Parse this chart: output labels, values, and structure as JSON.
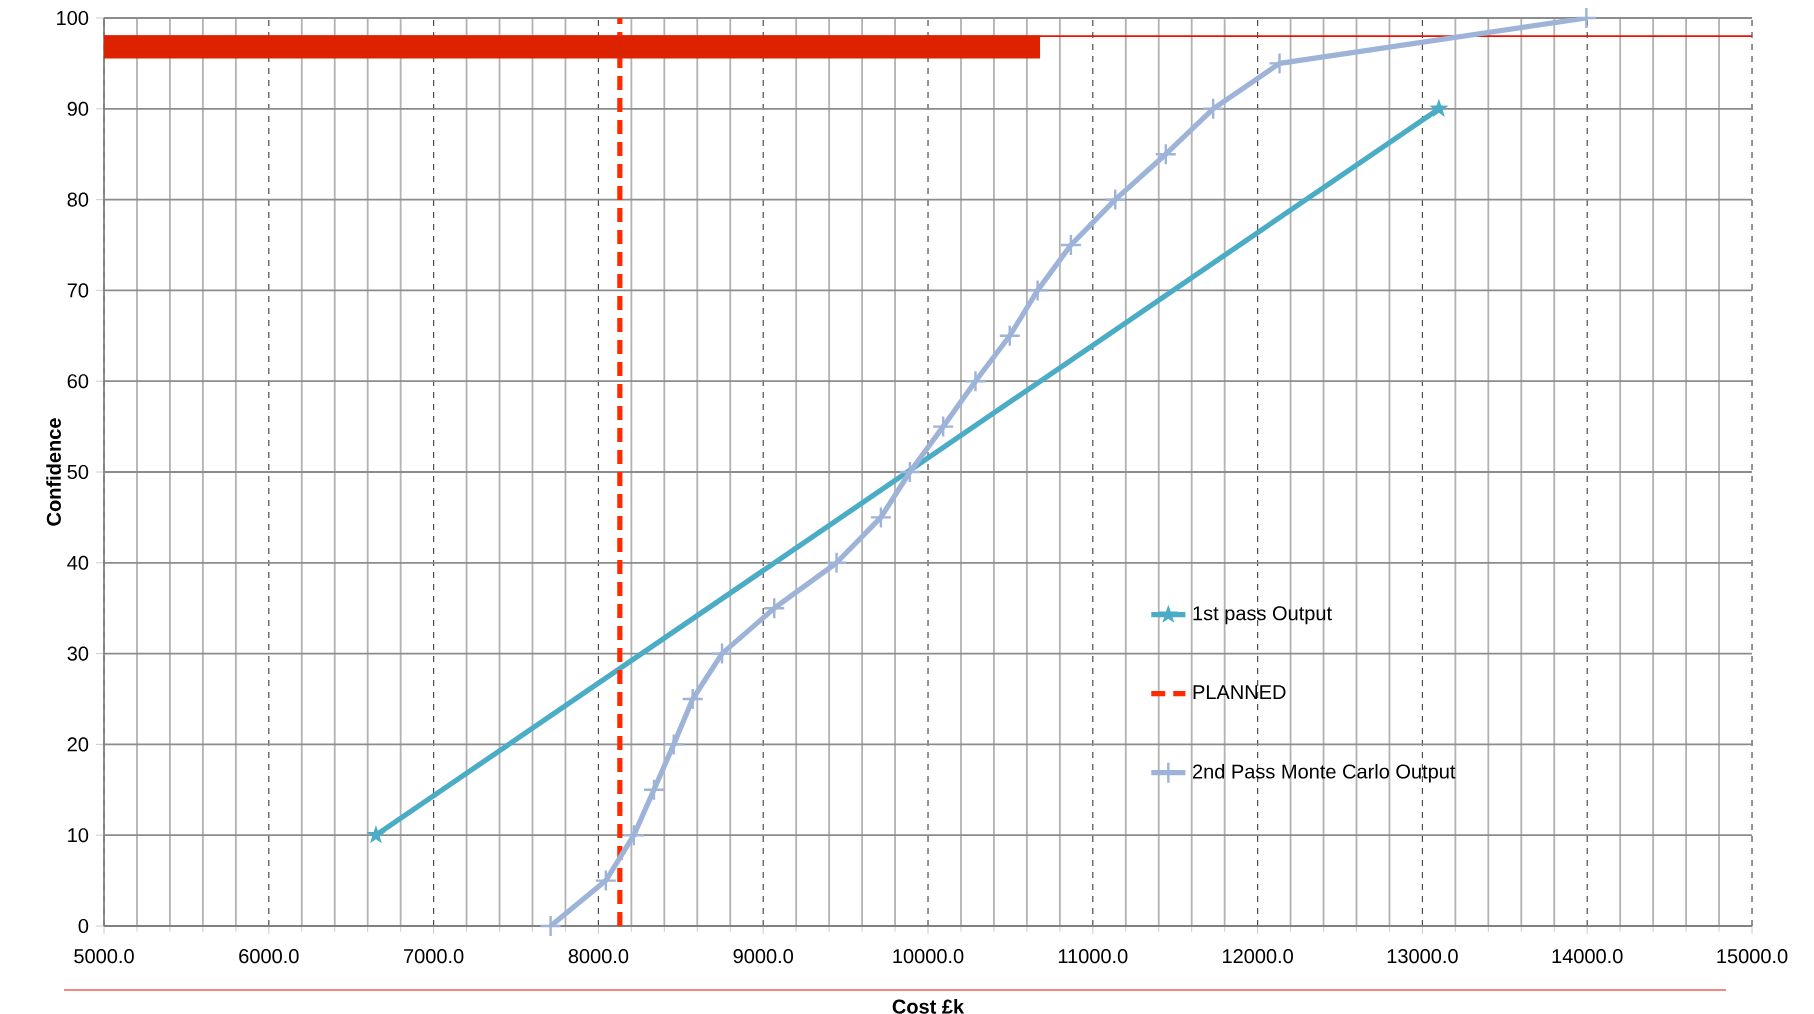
{
  "chart_data": {
    "type": "line",
    "xlabel": "Cost £k",
    "ylabel": "Confidence",
    "xlim": [
      5000,
      15000
    ],
    "ylim": [
      0,
      100
    ],
    "xticks": [
      {
        "value": 5000,
        "label": "5000.0"
      },
      {
        "value": 6000,
        "label": "6000.0"
      },
      {
        "value": 7000,
        "label": "7000.0"
      },
      {
        "value": 8000,
        "label": "8000.0"
      },
      {
        "value": 9000,
        "label": "9000.0"
      },
      {
        "value": 10000,
        "label": "10000.0"
      },
      {
        "value": 11000,
        "label": "11000.0"
      },
      {
        "value": 12000,
        "label": "12000.0"
      },
      {
        "value": 13000,
        "label": "13000.0"
      },
      {
        "value": 14000,
        "label": "14000.0"
      },
      {
        "value": 15000,
        "label": "15000.0"
      }
    ],
    "yticks": [
      0,
      10,
      20,
      30,
      40,
      50,
      60,
      70,
      80,
      90,
      100
    ],
    "grid": true,
    "legend": "right",
    "ref_lines": [
      {
        "axis": "y",
        "value": 98,
        "color": "#ee1100"
      }
    ],
    "series": [
      {
        "name": "1st pass Output",
        "color": "#4bacc6",
        "marker": "star",
        "x": [
          6650,
          13100
        ],
        "values": [
          10,
          90
        ]
      },
      {
        "name": "PLANNED",
        "color": "#ff2a00",
        "line_style": "dashed",
        "x": [
          8130,
          8130
        ],
        "values": [
          0,
          100
        ]
      },
      {
        "name": "2nd Pass Monte Carlo Output",
        "color": "#9eb3d8",
        "marker": "cross",
        "x": [
          7710,
          8045,
          8215,
          8337,
          8457,
          8572,
          8750,
          9067,
          9445,
          9714,
          9890,
          10092,
          10288,
          10496,
          10665,
          10867,
          11136,
          11443,
          11730,
          12133,
          13995
        ],
        "values": [
          0,
          5,
          10,
          15,
          20,
          25,
          30,
          35,
          40,
          45,
          50,
          55,
          60,
          65,
          70,
          75,
          80,
          85,
          90,
          95,
          100
        ]
      },
      {
        "color": "#dd2200",
        "x": [
          5000,
          10680
        ],
        "values": [
          96.8,
          96.8
        ]
      }
    ]
  }
}
